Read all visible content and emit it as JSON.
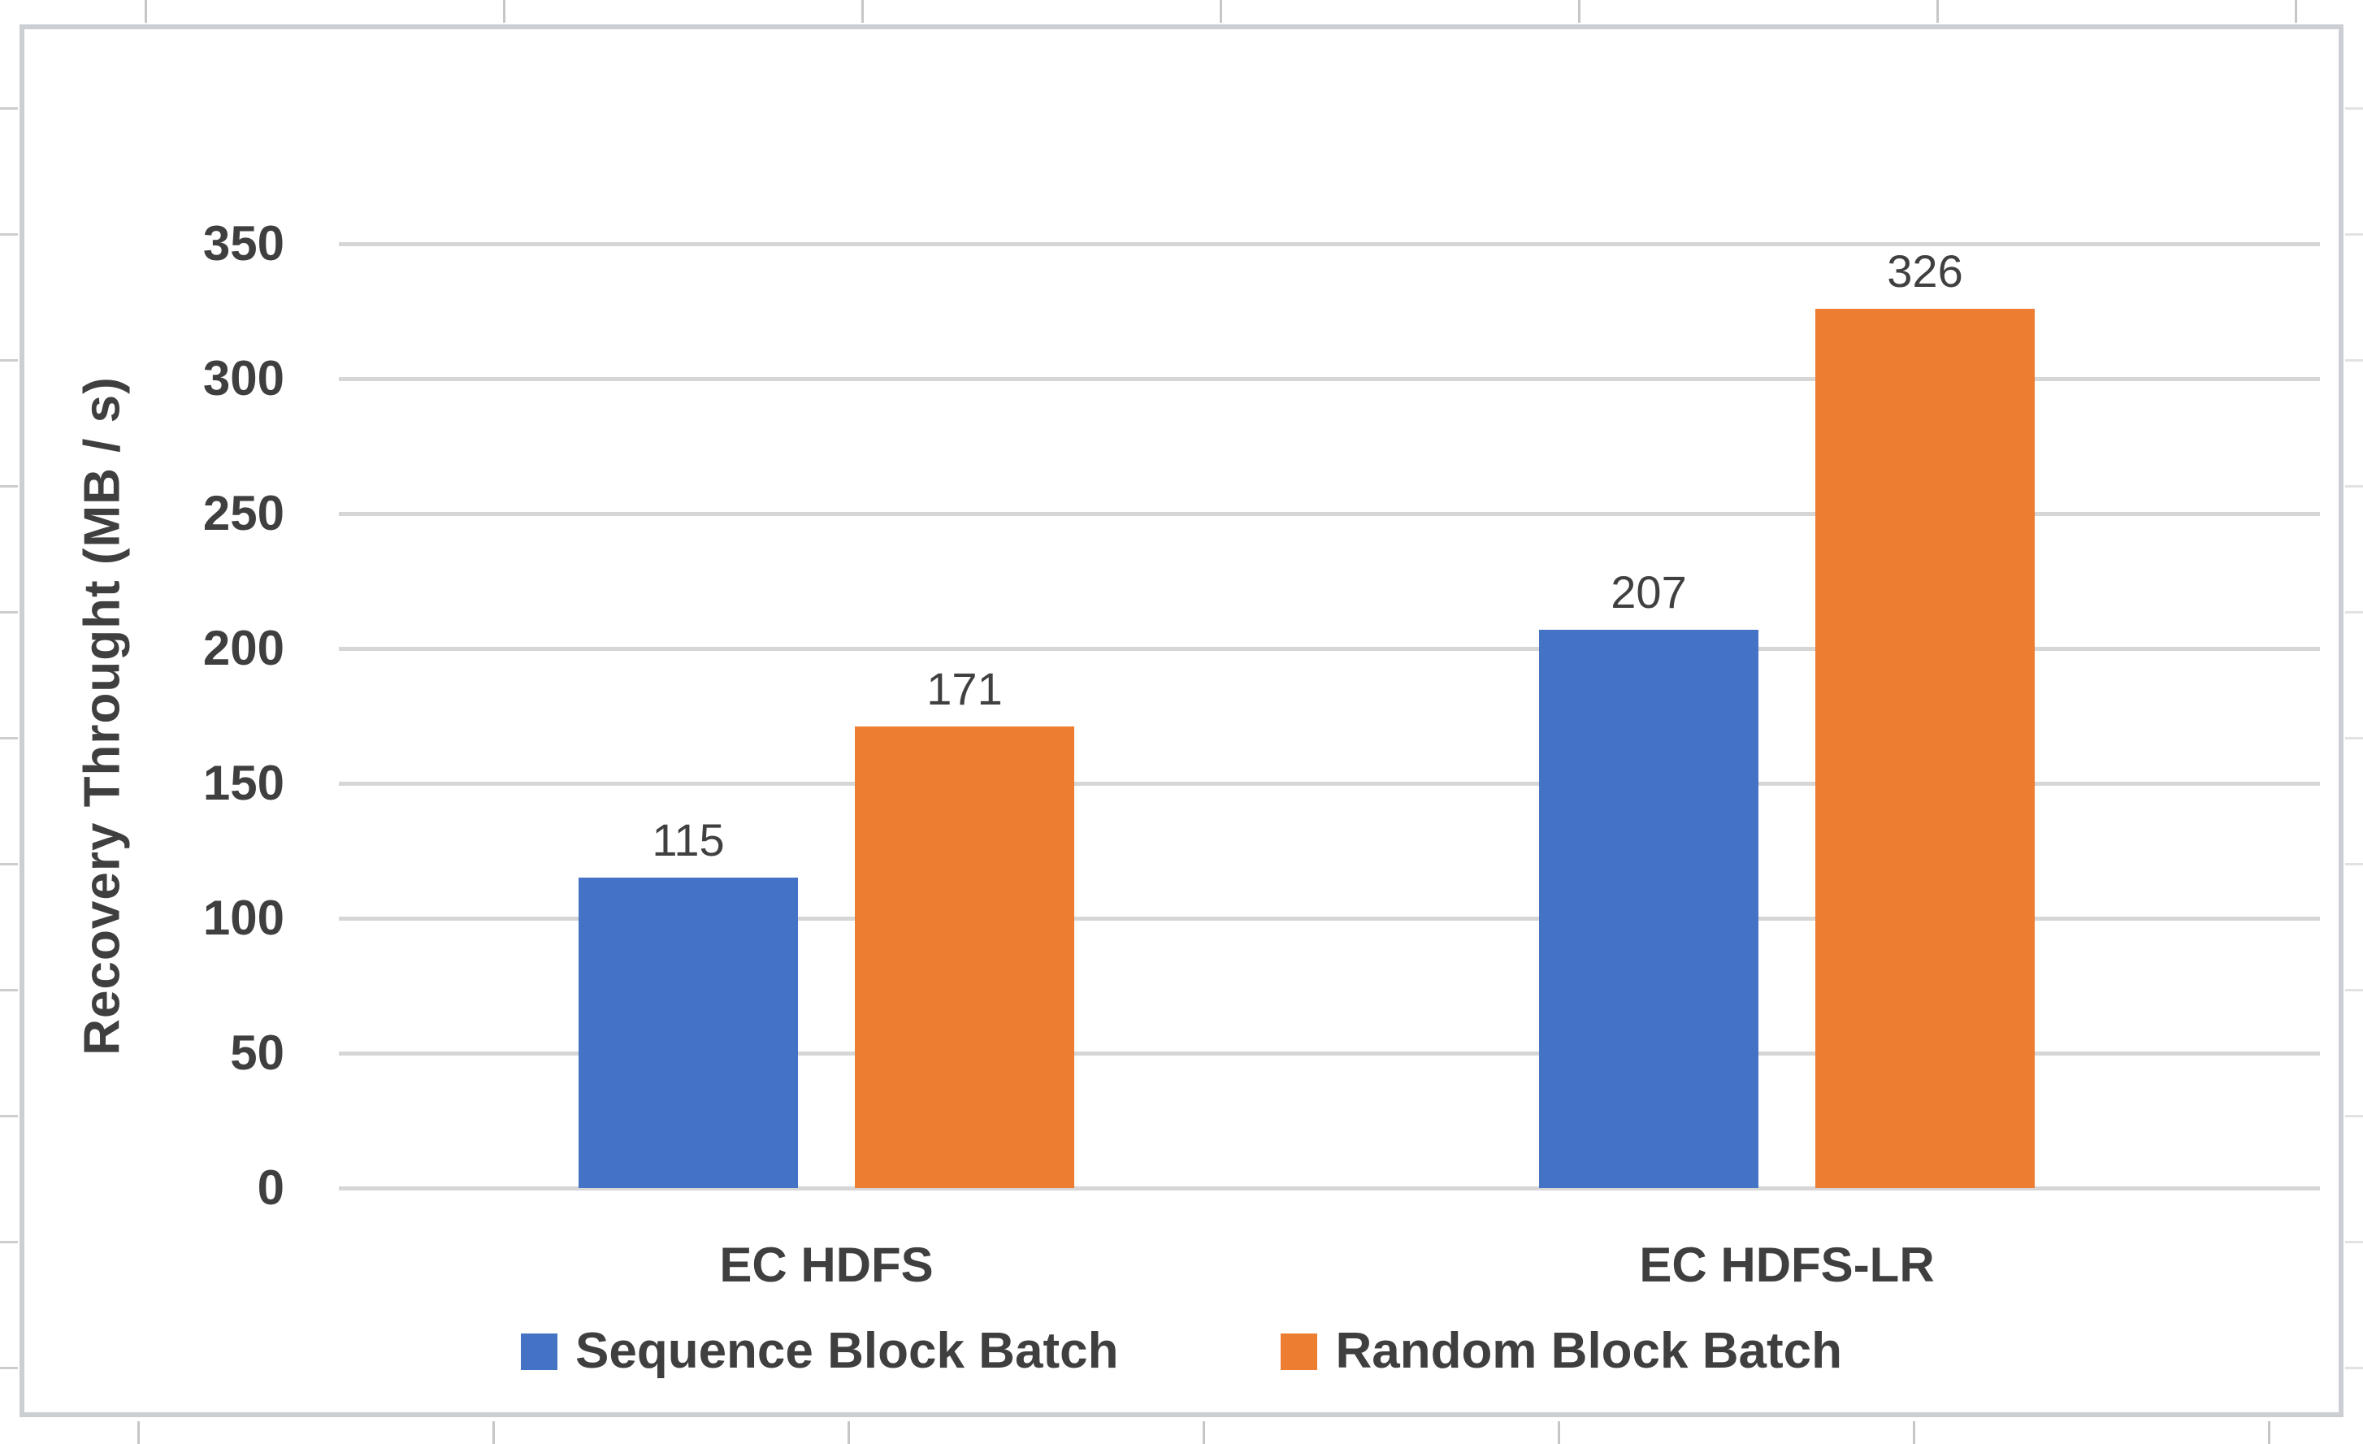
{
  "chart_data": {
    "type": "bar",
    "categories": [
      "EC HDFS",
      "EC HDFS-LR"
    ],
    "series": [
      {
        "name": "Sequence Block Batch",
        "color": "#4472C4",
        "values": [
          115,
          207
        ]
      },
      {
        "name": "Random Block Batch",
        "color": "#ED7D31",
        "values": [
          171,
          326
        ]
      }
    ],
    "title": "",
    "xlabel": "",
    "ylabel": "Recovery Throught (MB / s)",
    "yticks": [
      0,
      50,
      100,
      150,
      200,
      250,
      300,
      350
    ],
    "ylim": [
      0,
      350
    ],
    "grid": true,
    "data_labels": [
      [
        "115",
        "207"
      ],
      [
        "171",
        "326"
      ]
    ],
    "legend_position": "bottom"
  },
  "style": {
    "grid_color": "#d6d6d6",
    "frame_border_color": "#cbced2",
    "axis_text_color": "#3f3f3f",
    "data_label_color": "#404040",
    "background": "#ffffff"
  }
}
